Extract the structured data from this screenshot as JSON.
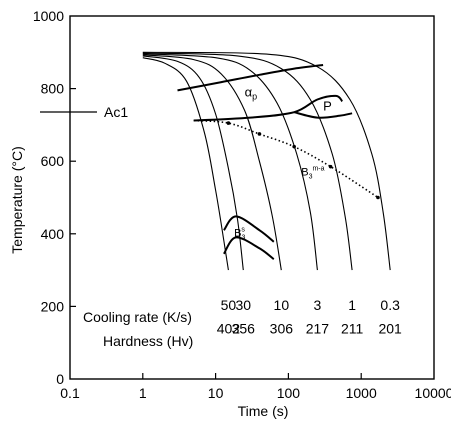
{
  "chart_data": {
    "type": "line",
    "title": "",
    "xlabel": "Time (s)",
    "ylabel": "Temperature (°C)",
    "xscale": "log",
    "xlim": [
      0.1,
      10000
    ],
    "ylim": [
      0,
      1000
    ],
    "x_ticks": [
      "0.1",
      "1",
      "10",
      "100",
      "1000",
      "10000"
    ],
    "y_ticks": [
      "0",
      "200",
      "400",
      "600",
      "800",
      "1000"
    ],
    "grid": false,
    "ac1": {
      "label": "Ac1",
      "temperature": 735
    },
    "cooling_curves": [
      {
        "rate": "50",
        "hardness": "402",
        "points": [
          [
            1,
            885
          ],
          [
            2,
            870
          ],
          [
            4,
            820
          ],
          [
            7,
            680
          ],
          [
            10,
            520
          ],
          [
            13,
            380
          ],
          [
            15,
            300
          ]
        ]
      },
      {
        "rate": "30",
        "hardness": "356",
        "points": [
          [
            1,
            890
          ],
          [
            3,
            875
          ],
          [
            6,
            830
          ],
          [
            10,
            730
          ],
          [
            15,
            580
          ],
          [
            20,
            440
          ],
          [
            24,
            300
          ]
        ]
      },
      {
        "rate": "10",
        "hardness": "306",
        "points": [
          [
            1,
            893
          ],
          [
            5,
            880
          ],
          [
            12,
            840
          ],
          [
            25,
            740
          ],
          [
            40,
            600
          ],
          [
            60,
            450
          ],
          [
            80,
            300
          ]
        ]
      },
      {
        "rate": "3",
        "hardness": "217",
        "points": [
          [
            1,
            896
          ],
          [
            10,
            885
          ],
          [
            30,
            850
          ],
          [
            70,
            760
          ],
          [
            130,
            620
          ],
          [
            200,
            460
          ],
          [
            250,
            300
          ]
        ]
      },
      {
        "rate": "1",
        "hardness": "211",
        "points": [
          [
            1,
            898
          ],
          [
            20,
            890
          ],
          [
            80,
            855
          ],
          [
            200,
            770
          ],
          [
            400,
            620
          ],
          [
            600,
            450
          ],
          [
            750,
            300
          ]
        ]
      },
      {
        "rate": "0.3",
        "hardness": "201",
        "points": [
          [
            1,
            900
          ],
          [
            50,
            895
          ],
          [
            250,
            860
          ],
          [
            700,
            770
          ],
          [
            1400,
            620
          ],
          [
            2000,
            460
          ],
          [
            2500,
            300
          ]
        ]
      }
    ],
    "phase_lines": [
      {
        "label": "αp",
        "style": "solid",
        "points": [
          [
            3,
            795
          ],
          [
            12,
            818
          ],
          [
            40,
            838
          ],
          [
            120,
            855
          ],
          [
            300,
            865
          ]
        ]
      },
      {
        "label": "P",
        "style": "solid",
        "points": [
          [
            5,
            712
          ],
          [
            30,
            720
          ],
          [
            120,
            735
          ],
          [
            250,
            770
          ],
          [
            450,
            780
          ],
          [
            550,
            765
          ]
        ]
      },
      {
        "label": "",
        "style": "solid",
        "points": [
          [
            120,
            735
          ],
          [
            250,
            720
          ],
          [
            500,
            725
          ],
          [
            750,
            732
          ]
        ]
      },
      {
        "label": "B3m-a",
        "style": "dotted",
        "points": [
          [
            5,
            712
          ],
          [
            15,
            705
          ],
          [
            40,
            675
          ],
          [
            120,
            640
          ],
          [
            380,
            585
          ],
          [
            1700,
            500
          ]
        ]
      },
      {
        "label": "",
        "style": "solid",
        "points": [
          [
            13,
            410
          ],
          [
            19,
            448
          ],
          [
            40,
            410
          ],
          [
            63,
            378
          ]
        ]
      },
      {
        "label": "B3s",
        "style": "solid",
        "points": [
          [
            13,
            345
          ],
          [
            19,
            390
          ],
          [
            40,
            360
          ],
          [
            63,
            330
          ]
        ]
      }
    ],
    "phase_label_positions": [
      {
        "label": "αp",
        "x": 25,
        "y": 778
      },
      {
        "label": "P",
        "x": 300,
        "y": 740
      },
      {
        "label": "B3m-a",
        "x": 150,
        "y": 560
      },
      {
        "label": "B3s",
        "x": 18,
        "y": 392
      }
    ],
    "cooling_rate_label": "Cooling rate (K/s)",
    "hardness_label": "Hardness (Hv)"
  }
}
